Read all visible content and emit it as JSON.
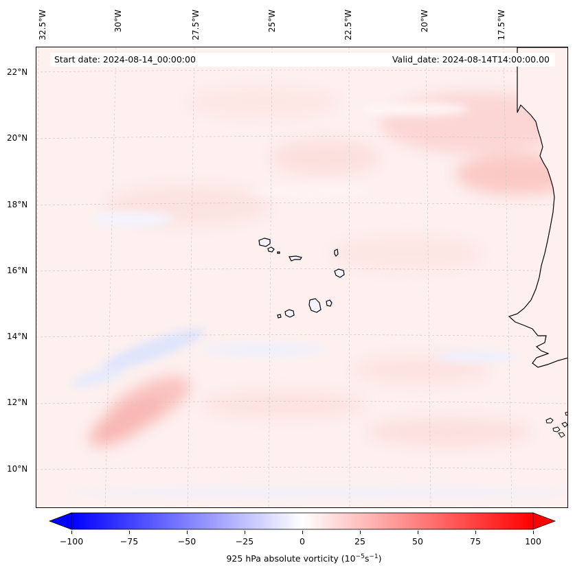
{
  "map": {
    "start_date": "Start date: 2024-08-14_00:00:00",
    "valid_date": "Valid_date: 2024-08-14T14:00:00.00",
    "lon_labels": [
      "32.5°W",
      "30°W",
      "27.5°W",
      "25°W",
      "22.5°W",
      "20°W",
      "17.5°W"
    ],
    "lat_labels": [
      "22°N",
      "20°N",
      "18°N",
      "16°N",
      "14°N",
      "12°N",
      "10°N"
    ],
    "features": [
      "Cape Verde Islands",
      "West African coastline"
    ]
  },
  "colorbar": {
    "ticks": [
      "−100",
      "−75",
      "−50",
      "−25",
      "0",
      "25",
      "50",
      "75",
      "100"
    ],
    "min": -100,
    "max": 100,
    "label": "925 hPa absolute vorticity (10",
    "label_exp1": "−5",
    "label_mid": "s",
    "label_exp2": "−1",
    "label_end": ")",
    "low_color": "#0000ff",
    "mid_color": "#ffffff",
    "high_color": "#ff0000"
  }
}
